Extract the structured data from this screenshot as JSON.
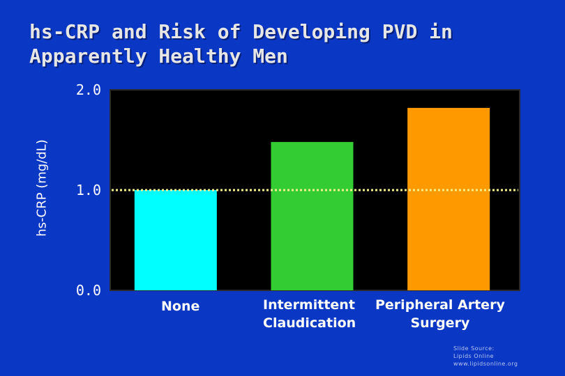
{
  "title": {
    "line1": "hs-CRP and Risk of Developing PVD in",
    "line2": "Apparently Healthy Men"
  },
  "source": {
    "line1": "Slide Source:",
    "line2": "Lipids Online",
    "line3": "www.lipidsonline.org"
  },
  "colors": {
    "background": "#0a37c4",
    "plot_area": "#000000",
    "reference_line": "#f5f08a",
    "bars": [
      "#00ffff",
      "#33cc33",
      "#ff9900"
    ]
  },
  "chart_data": {
    "type": "bar",
    "title": "hs-CRP and Risk of Developing PVD in Apparently Healthy Men",
    "ylabel": "hs-CRP (mg/dL)",
    "xlabel": "",
    "ylim": [
      0,
      2.0
    ],
    "yticks": [
      "0.0",
      "1.0",
      "2.0"
    ],
    "reference_line": 1.0,
    "grid": false,
    "categories": [
      "None",
      "Intermittent Claudication",
      "Peripheral Artery Surgery"
    ],
    "category_labels": {
      "none": "None",
      "intermittent": [
        "Intermittent",
        "Claudication"
      ],
      "peripheral": [
        "Peripheral Artery",
        "Surgery"
      ]
    },
    "values": [
      1.0,
      1.48,
      1.82
    ]
  }
}
